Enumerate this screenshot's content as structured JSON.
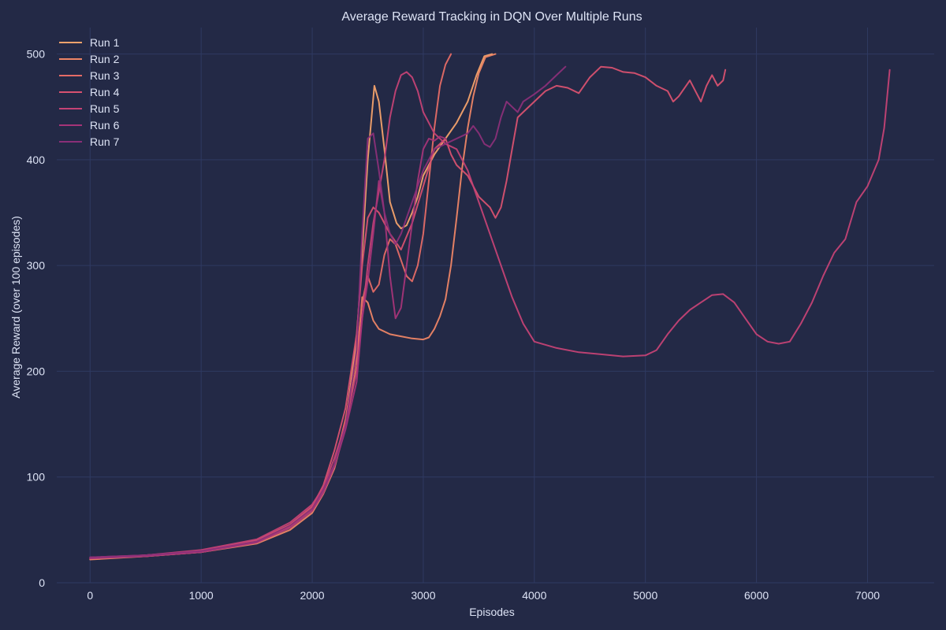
{
  "chart_data": {
    "type": "line",
    "title": "Average Reward Tracking in DQN Over Multiple Runs",
    "xlabel": "Episodes",
    "ylabel": "Average Reward (over 100 episodes)",
    "xlim": [
      -300,
      7600
    ],
    "ylim": [
      0,
      525
    ],
    "xticks": [
      0,
      1000,
      2000,
      3000,
      4000,
      5000,
      6000,
      7000
    ],
    "yticks": [
      0,
      100,
      200,
      300,
      400,
      500
    ],
    "grid": true,
    "legend_position": "top-left",
    "series": [
      {
        "name": "Run 1",
        "color": "#f4a26c",
        "points": [
          [
            0,
            23
          ],
          [
            500,
            25
          ],
          [
            1000,
            29
          ],
          [
            1500,
            38
          ],
          [
            1800,
            52
          ],
          [
            2000,
            68
          ],
          [
            2100,
            85
          ],
          [
            2200,
            110
          ],
          [
            2300,
            150
          ],
          [
            2400,
            230
          ],
          [
            2460,
            330
          ],
          [
            2500,
            400
          ],
          [
            2560,
            470
          ],
          [
            2600,
            455
          ],
          [
            2650,
            410
          ],
          [
            2700,
            360
          ],
          [
            2760,
            340
          ],
          [
            2800,
            335
          ],
          [
            2850,
            338
          ],
          [
            2900,
            350
          ],
          [
            2950,
            365
          ],
          [
            3000,
            385
          ],
          [
            3100,
            405
          ],
          [
            3200,
            420
          ],
          [
            3300,
            435
          ],
          [
            3400,
            455
          ],
          [
            3480,
            480
          ],
          [
            3550,
            498
          ],
          [
            3620,
            500
          ]
        ]
      },
      {
        "name": "Run 2",
        "color": "#ee8566",
        "points": [
          [
            0,
            22
          ],
          [
            500,
            25
          ],
          [
            1000,
            29
          ],
          [
            1500,
            37
          ],
          [
            1800,
            50
          ],
          [
            2000,
            66
          ],
          [
            2100,
            84
          ],
          [
            2200,
            108
          ],
          [
            2300,
            148
          ],
          [
            2400,
            205
          ],
          [
            2450,
            270
          ],
          [
            2500,
            265
          ],
          [
            2550,
            248
          ],
          [
            2600,
            240
          ],
          [
            2700,
            235
          ],
          [
            2800,
            233
          ],
          [
            2900,
            231
          ],
          [
            3000,
            230
          ],
          [
            3050,
            232
          ],
          [
            3100,
            240
          ],
          [
            3150,
            252
          ],
          [
            3200,
            268
          ],
          [
            3250,
            300
          ],
          [
            3300,
            345
          ],
          [
            3350,
            392
          ],
          [
            3400,
            430
          ],
          [
            3450,
            460
          ],
          [
            3500,
            482
          ],
          [
            3560,
            497
          ],
          [
            3650,
            500
          ]
        ]
      },
      {
        "name": "Run 3",
        "color": "#e56b66",
        "points": [
          [
            0,
            23
          ],
          [
            500,
            26
          ],
          [
            1000,
            30
          ],
          [
            1500,
            39
          ],
          [
            1800,
            53
          ],
          [
            2000,
            70
          ],
          [
            2100,
            88
          ],
          [
            2200,
            112
          ],
          [
            2300,
            155
          ],
          [
            2400,
            215
          ],
          [
            2450,
            265
          ],
          [
            2500,
            290
          ],
          [
            2550,
            275
          ],
          [
            2600,
            282
          ],
          [
            2650,
            310
          ],
          [
            2700,
            325
          ],
          [
            2750,
            320
          ],
          [
            2800,
            305
          ],
          [
            2850,
            290
          ],
          [
            2900,
            285
          ],
          [
            2950,
            300
          ],
          [
            3000,
            330
          ],
          [
            3050,
            380
          ],
          [
            3100,
            430
          ],
          [
            3150,
            470
          ],
          [
            3200,
            490
          ],
          [
            3250,
            500
          ]
        ]
      },
      {
        "name": "Run 4",
        "color": "#d85170",
        "points": [
          [
            0,
            23
          ],
          [
            500,
            26
          ],
          [
            1000,
            30
          ],
          [
            1500,
            40
          ],
          [
            1800,
            55
          ],
          [
            2000,
            72
          ],
          [
            2100,
            92
          ],
          [
            2200,
            125
          ],
          [
            2300,
            165
          ],
          [
            2400,
            235
          ],
          [
            2450,
            300
          ],
          [
            2500,
            345
          ],
          [
            2550,
            355
          ],
          [
            2600,
            350
          ],
          [
            2650,
            340
          ],
          [
            2700,
            330
          ],
          [
            2800,
            315
          ],
          [
            2900,
            340
          ],
          [
            3000,
            375
          ],
          [
            3100,
            410
          ],
          [
            3200,
            420
          ],
          [
            3250,
            405
          ],
          [
            3300,
            395
          ],
          [
            3400,
            385
          ],
          [
            3500,
            365
          ],
          [
            3600,
            355
          ],
          [
            3650,
            345
          ],
          [
            3700,
            355
          ],
          [
            3750,
            380
          ],
          [
            3800,
            410
          ],
          [
            3850,
            440
          ],
          [
            3900,
            445
          ],
          [
            4000,
            455
          ],
          [
            4100,
            465
          ],
          [
            4200,
            470
          ],
          [
            4300,
            468
          ],
          [
            4400,
            463
          ],
          [
            4500,
            478
          ],
          [
            4600,
            488
          ],
          [
            4700,
            487
          ],
          [
            4800,
            483
          ],
          [
            4900,
            482
          ],
          [
            5000,
            478
          ],
          [
            5100,
            470
          ],
          [
            5200,
            465
          ],
          [
            5250,
            455
          ],
          [
            5300,
            460
          ],
          [
            5400,
            475
          ],
          [
            5450,
            465
          ],
          [
            5500,
            455
          ],
          [
            5550,
            470
          ],
          [
            5600,
            480
          ],
          [
            5650,
            470
          ],
          [
            5700,
            475
          ],
          [
            5720,
            485
          ]
        ]
      },
      {
        "name": "Run 5",
        "color": "#c44275",
        "points": [
          [
            0,
            24
          ],
          [
            500,
            26
          ],
          [
            1000,
            31
          ],
          [
            1500,
            41
          ],
          [
            1800,
            57
          ],
          [
            2000,
            74
          ],
          [
            2100,
            90
          ],
          [
            2200,
            118
          ],
          [
            2300,
            150
          ],
          [
            2400,
            200
          ],
          [
            2450,
            250
          ],
          [
            2500,
            300
          ],
          [
            2550,
            340
          ],
          [
            2600,
            370
          ],
          [
            2650,
            400
          ],
          [
            2700,
            440
          ],
          [
            2750,
            465
          ],
          [
            2800,
            480
          ],
          [
            2850,
            483
          ],
          [
            2900,
            478
          ],
          [
            2950,
            465
          ],
          [
            3000,
            445
          ],
          [
            3100,
            425
          ],
          [
            3200,
            415
          ],
          [
            3300,
            410
          ],
          [
            3400,
            390
          ],
          [
            3500,
            360
          ],
          [
            3600,
            330
          ],
          [
            3700,
            300
          ],
          [
            3800,
            270
          ],
          [
            3900,
            245
          ],
          [
            4000,
            228
          ],
          [
            4200,
            222
          ],
          [
            4400,
            218
          ],
          [
            4600,
            216
          ],
          [
            4800,
            214
          ],
          [
            5000,
            215
          ],
          [
            5100,
            220
          ],
          [
            5200,
            235
          ],
          [
            5300,
            248
          ],
          [
            5400,
            258
          ],
          [
            5500,
            265
          ],
          [
            5600,
            272
          ],
          [
            5700,
            273
          ],
          [
            5800,
            265
          ],
          [
            5900,
            250
          ],
          [
            6000,
            235
          ],
          [
            6100,
            228
          ],
          [
            6200,
            226
          ],
          [
            6300,
            228
          ],
          [
            6400,
            245
          ],
          [
            6500,
            265
          ],
          [
            6600,
            290
          ],
          [
            6700,
            312
          ],
          [
            6800,
            325
          ],
          [
            6900,
            360
          ],
          [
            7000,
            375
          ],
          [
            7100,
            400
          ],
          [
            7150,
            430
          ],
          [
            7200,
            485
          ]
        ]
      },
      {
        "name": "Run 6",
        "color": "#a53478",
        "points": [
          [
            0,
            23
          ],
          [
            500,
            25
          ],
          [
            1000,
            29
          ],
          [
            1500,
            38
          ],
          [
            1800,
            52
          ],
          [
            2000,
            68
          ],
          [
            2100,
            85
          ],
          [
            2200,
            110
          ],
          [
            2300,
            145
          ],
          [
            2400,
            190
          ],
          [
            2450,
            250
          ],
          [
            2500,
            285
          ],
          [
            2550,
            330
          ],
          [
            2600,
            380
          ],
          [
            2650,
            350
          ],
          [
            2700,
            290
          ],
          [
            2750,
            250
          ],
          [
            2800,
            260
          ],
          [
            2850,
            300
          ],
          [
            2900,
            340
          ],
          [
            2950,
            380
          ],
          [
            3000,
            410
          ],
          [
            3050,
            420
          ],
          [
            3100,
            418
          ],
          [
            3150,
            422
          ],
          [
            3200,
            420
          ]
        ]
      },
      {
        "name": "Run 7",
        "color": "#8a2f78",
        "points": [
          [
            0,
            24
          ],
          [
            500,
            26
          ],
          [
            1000,
            30
          ],
          [
            1500,
            39
          ],
          [
            1800,
            54
          ],
          [
            2000,
            70
          ],
          [
            2100,
            88
          ],
          [
            2200,
            112
          ],
          [
            2300,
            148
          ],
          [
            2400,
            220
          ],
          [
            2450,
            330
          ],
          [
            2500,
            420
          ],
          [
            2550,
            425
          ],
          [
            2600,
            390
          ],
          [
            2650,
            350
          ],
          [
            2700,
            330
          ],
          [
            2750,
            320
          ],
          [
            2800,
            330
          ],
          [
            2900,
            360
          ],
          [
            3000,
            390
          ],
          [
            3100,
            410
          ],
          [
            3200,
            415
          ],
          [
            3300,
            420
          ],
          [
            3400,
            425
          ],
          [
            3450,
            432
          ],
          [
            3500,
            425
          ],
          [
            3550,
            415
          ],
          [
            3600,
            412
          ],
          [
            3650,
            420
          ],
          [
            3700,
            440
          ],
          [
            3750,
            455
          ],
          [
            3800,
            450
          ],
          [
            3850,
            445
          ],
          [
            3900,
            455
          ],
          [
            4000,
            462
          ],
          [
            4100,
            470
          ],
          [
            4200,
            480
          ],
          [
            4280,
            488
          ]
        ]
      }
    ]
  }
}
